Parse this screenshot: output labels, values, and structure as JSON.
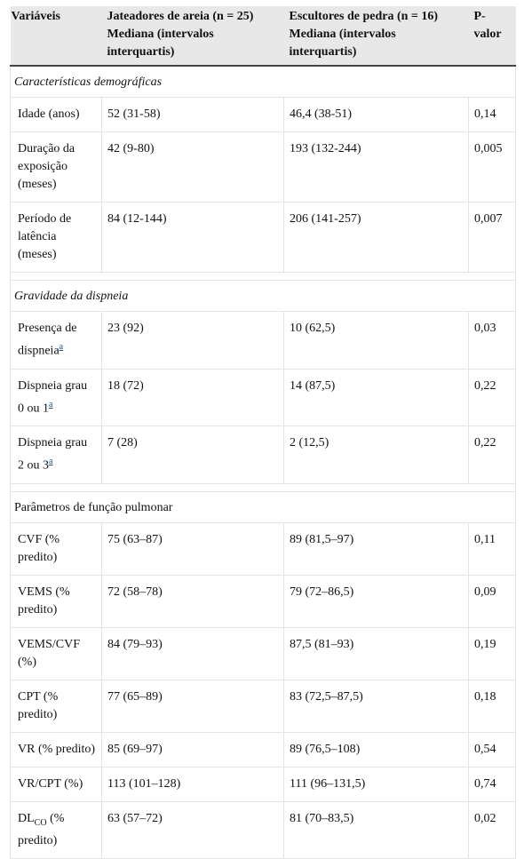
{
  "headers": {
    "col1": "Variáveis",
    "col2": "Jateadores de areia (n = 25) Mediana (intervalos interquartis)",
    "col3": "Escultores de pedra (n = 16) Mediana (intervalos interquartis)",
    "col4": "P-valor"
  },
  "sections": {
    "demo": "Características demográficas",
    "dysp": "Gravidade da dispneia",
    "lung": "Parâmetros de função pulmonar"
  },
  "footnote_marker": "a",
  "rows": {
    "idade": {
      "label": "Idade (anos)",
      "a": "52 (31-58)",
      "b": "46,4 (38-51)",
      "p": "0,14"
    },
    "duracao": {
      "label": "Duração da exposição (meses)",
      "a": "42 (9-80)",
      "b": "193 (132-244)",
      "p": "0,005"
    },
    "latencia": {
      "label": "Período de latência (meses)",
      "a": "84 (12-144)",
      "b": "206 (141-257)",
      "p": "0,007"
    },
    "presenca": {
      "label": "Presença de dispneia",
      "a": "23 (92)",
      "b": "10 (62,5)",
      "p": "0,03"
    },
    "grau01": {
      "label": "Dispneia grau 0 ou 1",
      "a": "18 (72)",
      "b": "14 (87,5)",
      "p": "0,22"
    },
    "grau23": {
      "label": "Dispneia grau 2 ou 3",
      "a": "7 (28)",
      "b": "2 (12,5)",
      "p": "0,22"
    },
    "cvf": {
      "label": "CVF (% predito)",
      "a": "75 (63–87)",
      "b": "89 (81,5–97)",
      "p": "0,11"
    },
    "vems": {
      "label": "VEMS (% predito)",
      "a": "72 (58–78)",
      "b": "79 (72–86,5)",
      "p": "0,09"
    },
    "vemscvf": {
      "label": "VEMS/CVF (%)",
      "a": "84 (79–93)",
      "b": "87,5 (81–93)",
      "p": "0,19"
    },
    "cpt": {
      "label": "CPT (% predito)",
      "a": "77 (65–89)",
      "b": "83 (72,5–87,5)",
      "p": "0,18"
    },
    "vr": {
      "label": "VR (% predito)",
      "a": "85 (69–97)",
      "b": "89 (76,5–108)",
      "p": "0,54"
    },
    "vrcpt": {
      "label": "VR/CPT (%)",
      "a": "113 (101–128)",
      "b": "111 (96–131,5)",
      "p": "0,74"
    },
    "dlco": {
      "label_main": "DL",
      "label_sub": "CO",
      "label_rest": " (% predito)",
      "a": "63 (57–72)",
      "b": "81 (70–83,5)",
      "p": "0,02"
    }
  }
}
